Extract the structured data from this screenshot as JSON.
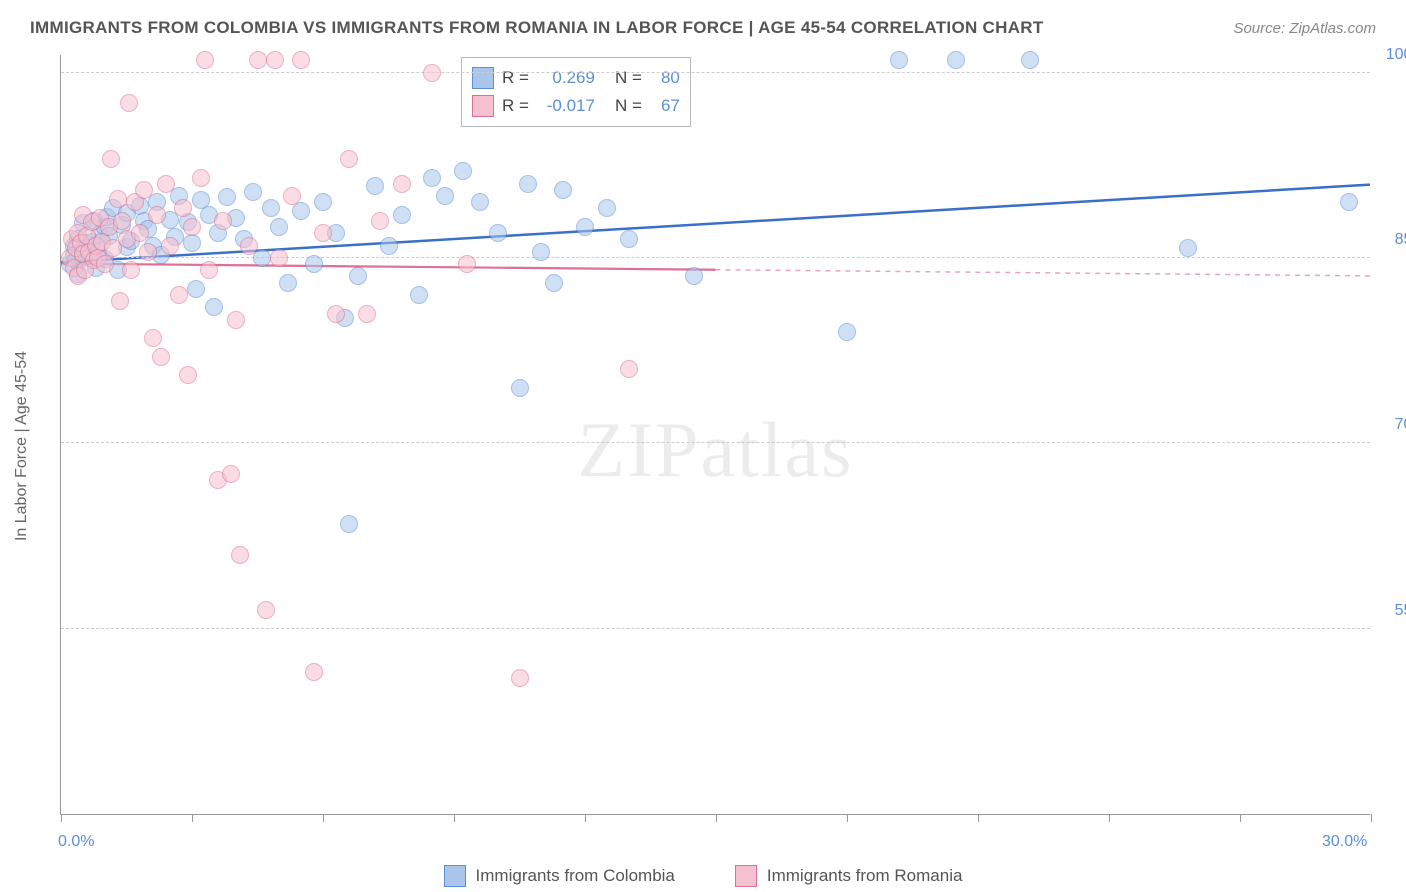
{
  "title": "IMMIGRANTS FROM COLOMBIA VS IMMIGRANTS FROM ROMANIA IN LABOR FORCE | AGE 45-54 CORRELATION CHART",
  "source_label": "Source: ZipAtlas.com",
  "y_axis_title": "In Labor Force | Age 45-54",
  "watermark": "ZIPatlas",
  "chart": {
    "type": "scatter",
    "x_domain": [
      0,
      30
    ],
    "y_domain": [
      40,
      101.5
    ],
    "x_ticks": [
      0,
      3,
      6,
      9,
      12,
      15,
      18,
      21,
      24,
      27,
      30
    ],
    "x_tick_labels": {
      "0": "0.0%",
      "30": "30.0%"
    },
    "y_grid": [
      55,
      70,
      85,
      100
    ],
    "y_tick_labels": {
      "55": "55.0%",
      "70": "70.0%",
      "85": "85.0%",
      "100": "100.0%"
    },
    "background_color": "#ffffff",
    "grid_color": "#cccccc",
    "axis_color": "#999999",
    "label_color": "#5b8fd6",
    "marker_radius": 9,
    "marker_stroke_width": 1.5,
    "series": [
      {
        "id": "colombia",
        "label": "Immigrants from Colombia",
        "fill": "#a9c5ec",
        "stroke": "#5b8fd6",
        "fill_opacity": 0.55,
        "R": "0.269",
        "N": "80",
        "trend": {
          "x1": 0,
          "y1": 84.7,
          "x2": 30,
          "y2": 91.0,
          "color": "#3b6fc9",
          "width": 2.5,
          "dash": "none"
        },
        "points": [
          [
            0.2,
            84.5
          ],
          [
            0.3,
            85.2
          ],
          [
            0.3,
            86.0
          ],
          [
            0.35,
            84.8
          ],
          [
            0.4,
            86.5
          ],
          [
            0.4,
            83.7
          ],
          [
            0.5,
            85.0
          ],
          [
            0.5,
            87.8
          ],
          [
            0.55,
            86.2
          ],
          [
            0.6,
            85.8
          ],
          [
            0.7,
            86.3
          ],
          [
            0.75,
            88.0
          ],
          [
            0.8,
            84.2
          ],
          [
            0.85,
            85.5
          ],
          [
            0.9,
            86.9
          ],
          [
            1.0,
            87.5
          ],
          [
            1.0,
            84.9
          ],
          [
            1.05,
            88.3
          ],
          [
            1.1,
            86.8
          ],
          [
            1.2,
            89.0
          ],
          [
            1.3,
            84.0
          ],
          [
            1.4,
            87.7
          ],
          [
            1.5,
            88.6
          ],
          [
            1.5,
            85.9
          ],
          [
            1.6,
            86.4
          ],
          [
            1.8,
            89.2
          ],
          [
            1.9,
            88.0
          ],
          [
            2.0,
            87.3
          ],
          [
            2.1,
            86.0
          ],
          [
            2.2,
            89.5
          ],
          [
            2.3,
            85.2
          ],
          [
            2.5,
            88.1
          ],
          [
            2.6,
            86.7
          ],
          [
            2.7,
            90.0
          ],
          [
            2.9,
            87.9
          ],
          [
            3.0,
            86.2
          ],
          [
            3.1,
            82.5
          ],
          [
            3.2,
            89.7
          ],
          [
            3.4,
            88.5
          ],
          [
            3.5,
            81.0
          ],
          [
            3.6,
            87.0
          ],
          [
            3.8,
            89.9
          ],
          [
            4.0,
            88.2
          ],
          [
            4.2,
            86.5
          ],
          [
            4.4,
            90.3
          ],
          [
            4.6,
            85.0
          ],
          [
            4.8,
            89.0
          ],
          [
            5.0,
            87.5
          ],
          [
            5.2,
            83.0
          ],
          [
            5.5,
            88.8
          ],
          [
            5.8,
            84.5
          ],
          [
            6.0,
            89.5
          ],
          [
            6.3,
            87.0
          ],
          [
            6.5,
            80.1
          ],
          [
            6.6,
            63.5
          ],
          [
            6.8,
            83.5
          ],
          [
            7.2,
            90.8
          ],
          [
            7.5,
            86.0
          ],
          [
            7.8,
            88.5
          ],
          [
            8.2,
            82.0
          ],
          [
            8.5,
            91.5
          ],
          [
            8.8,
            90.0
          ],
          [
            9.2,
            92.0
          ],
          [
            9.6,
            89.5
          ],
          [
            10.0,
            87.0
          ],
          [
            10.5,
            74.5
          ],
          [
            10.7,
            91.0
          ],
          [
            11.0,
            85.5
          ],
          [
            11.3,
            83.0
          ],
          [
            11.5,
            90.5
          ],
          [
            12.0,
            87.5
          ],
          [
            12.5,
            89.0
          ],
          [
            13.0,
            86.5
          ],
          [
            14.5,
            83.5
          ],
          [
            18.0,
            79.0
          ],
          [
            19.2,
            101.0
          ],
          [
            20.5,
            101.0
          ],
          [
            22.2,
            101.0
          ],
          [
            25.8,
            85.8
          ],
          [
            29.5,
            89.5
          ]
        ]
      },
      {
        "id": "romania",
        "label": "Immigrants from Romania",
        "fill": "#f5c0cf",
        "stroke": "#e06f91",
        "fill_opacity": 0.55,
        "R": "-0.017",
        "N": "67",
        "trend_solid": {
          "x1": 0,
          "y1": 84.6,
          "x2": 15,
          "y2": 84.1,
          "color": "#e06f91",
          "width": 2.2,
          "dash": "none"
        },
        "trend_dash": {
          "x1": 15,
          "y1": 84.1,
          "x2": 30,
          "y2": 83.6,
          "color": "#e9a5b8",
          "width": 1.5,
          "dash": "5,5"
        },
        "points": [
          [
            0.2,
            85.0
          ],
          [
            0.25,
            86.5
          ],
          [
            0.3,
            84.2
          ],
          [
            0.35,
            85.8
          ],
          [
            0.4,
            87.0
          ],
          [
            0.4,
            83.5
          ],
          [
            0.45,
            86.2
          ],
          [
            0.5,
            85.3
          ],
          [
            0.5,
            88.5
          ],
          [
            0.55,
            84.0
          ],
          [
            0.6,
            86.8
          ],
          [
            0.65,
            85.5
          ],
          [
            0.7,
            87.9
          ],
          [
            0.75,
            84.8
          ],
          [
            0.8,
            86.0
          ],
          [
            0.85,
            85.0
          ],
          [
            0.9,
            88.2
          ],
          [
            0.95,
            86.3
          ],
          [
            1.0,
            84.5
          ],
          [
            1.1,
            87.5
          ],
          [
            1.15,
            93.0
          ],
          [
            1.2,
            85.8
          ],
          [
            1.3,
            89.8
          ],
          [
            1.35,
            81.5
          ],
          [
            1.4,
            88.0
          ],
          [
            1.5,
            86.5
          ],
          [
            1.55,
            97.5
          ],
          [
            1.6,
            84.0
          ],
          [
            1.7,
            89.5
          ],
          [
            1.8,
            87.0
          ],
          [
            1.9,
            90.5
          ],
          [
            2.0,
            85.5
          ],
          [
            2.1,
            78.5
          ],
          [
            2.2,
            88.5
          ],
          [
            2.3,
            77.0
          ],
          [
            2.4,
            91.0
          ],
          [
            2.5,
            86.0
          ],
          [
            2.7,
            82.0
          ],
          [
            2.8,
            89.0
          ],
          [
            2.9,
            75.5
          ],
          [
            3.0,
            87.5
          ],
          [
            3.2,
            91.5
          ],
          [
            3.3,
            101.0
          ],
          [
            3.4,
            84.0
          ],
          [
            3.6,
            67.0
          ],
          [
            3.7,
            88.0
          ],
          [
            3.9,
            67.5
          ],
          [
            4.0,
            80.0
          ],
          [
            4.1,
            61.0
          ],
          [
            4.3,
            86.0
          ],
          [
            4.5,
            101.0
          ],
          [
            4.7,
            56.5
          ],
          [
            4.9,
            101.0
          ],
          [
            5.0,
            85.0
          ],
          [
            5.3,
            90.0
          ],
          [
            5.5,
            101.0
          ],
          [
            5.8,
            51.5
          ],
          [
            6.0,
            87.0
          ],
          [
            6.3,
            80.5
          ],
          [
            6.6,
            93.0
          ],
          [
            7.0,
            80.5
          ],
          [
            7.3,
            88.0
          ],
          [
            7.8,
            91.0
          ],
          [
            8.5,
            100.0
          ],
          [
            9.3,
            84.5
          ],
          [
            10.5,
            51.0
          ],
          [
            13.0,
            76.0
          ]
        ]
      }
    ]
  },
  "legend_box": {
    "rows": [
      {
        "swatch_fill": "#a9c5ec",
        "swatch_stroke": "#5b8fd6",
        "r_label": "R =",
        "r_val": "0.269",
        "n_label": "N =",
        "n_val": "80"
      },
      {
        "swatch_fill": "#f5c0cf",
        "swatch_stroke": "#e06f91",
        "r_label": "R =",
        "r_val": "-0.017",
        "n_label": "N =",
        "n_val": "67"
      }
    ]
  }
}
